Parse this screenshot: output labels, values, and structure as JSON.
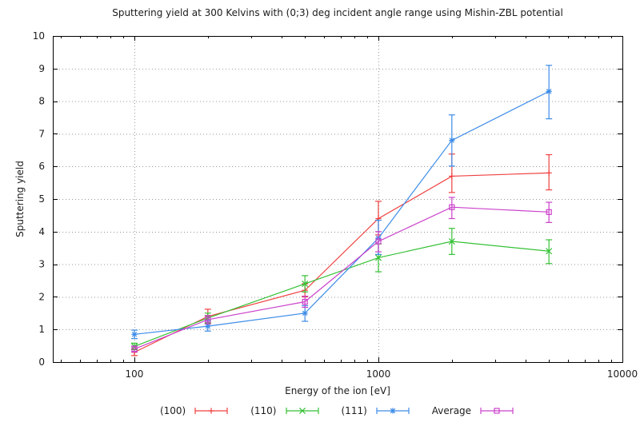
{
  "title": "Sputtering yield at 300 Kelvins with (0;3) deg incident angle range using Mishin-ZBL potential",
  "chart_data": {
    "type": "line",
    "title": "Sputtering yield at 300 Kelvins with (0;3) deg incident angle range using Mishin-ZBL potential",
    "xlabel": "Energy of the ion [eV]",
    "ylabel": "Sputtering yield",
    "x_scale": "log",
    "xlim": [
      46.3,
      10000
    ],
    "ylim": [
      0,
      10
    ],
    "x_major_ticks": [
      100,
      1000,
      10000
    ],
    "x_major_tick_labels": [
      "100",
      "1000",
      "10000"
    ],
    "y_ticks": [
      0,
      1,
      2,
      3,
      4,
      5,
      6,
      7,
      8,
      9,
      10
    ],
    "grid": true,
    "grid_style": "dotted",
    "legend_position": "bottom-center",
    "x": [
      100,
      200,
      500,
      1000,
      2000,
      5000
    ],
    "series": [
      {
        "name": "(100)",
        "color": "#f04040",
        "marker": "plus",
        "values": [
          0.3,
          1.4,
          2.2,
          4.4,
          5.7,
          5.8
        ],
        "err_low": [
          0.2,
          1.18,
          2.0,
          3.9,
          5.2,
          5.28
        ],
        "err_high": [
          0.4,
          1.62,
          2.4,
          4.93,
          6.38,
          6.36
        ]
      },
      {
        "name": "(110)",
        "color": "#35c135",
        "marker": "cross",
        "values": [
          0.48,
          1.35,
          2.4,
          3.2,
          3.7,
          3.4
        ],
        "err_low": [
          0.38,
          1.2,
          2.15,
          2.77,
          3.3,
          3.02
        ],
        "err_high": [
          0.58,
          1.5,
          2.65,
          3.62,
          4.1,
          3.75
        ]
      },
      {
        "name": "(111)",
        "color": "#3d8ce8",
        "marker": "asterisk",
        "values": [
          0.85,
          1.1,
          1.5,
          3.8,
          6.8,
          8.3
        ],
        "err_low": [
          0.72,
          0.95,
          1.25,
          3.3,
          6.01,
          7.46
        ],
        "err_high": [
          0.98,
          1.27,
          1.73,
          4.35,
          7.58,
          9.1
        ]
      },
      {
        "name": "Average",
        "color": "#cb42cb",
        "marker": "square",
        "values": [
          0.4,
          1.3,
          1.85,
          3.7,
          4.75,
          4.6
        ],
        "err_low": [
          0.31,
          1.17,
          1.68,
          3.38,
          4.4,
          4.28
        ],
        "err_high": [
          0.49,
          1.43,
          2.02,
          4.0,
          5.05,
          4.9
        ]
      }
    ]
  },
  "colors": {
    "background": "#ffffff",
    "axis": "#000000",
    "grid": "#9a9a9a",
    "text": "#1c1c1c"
  }
}
